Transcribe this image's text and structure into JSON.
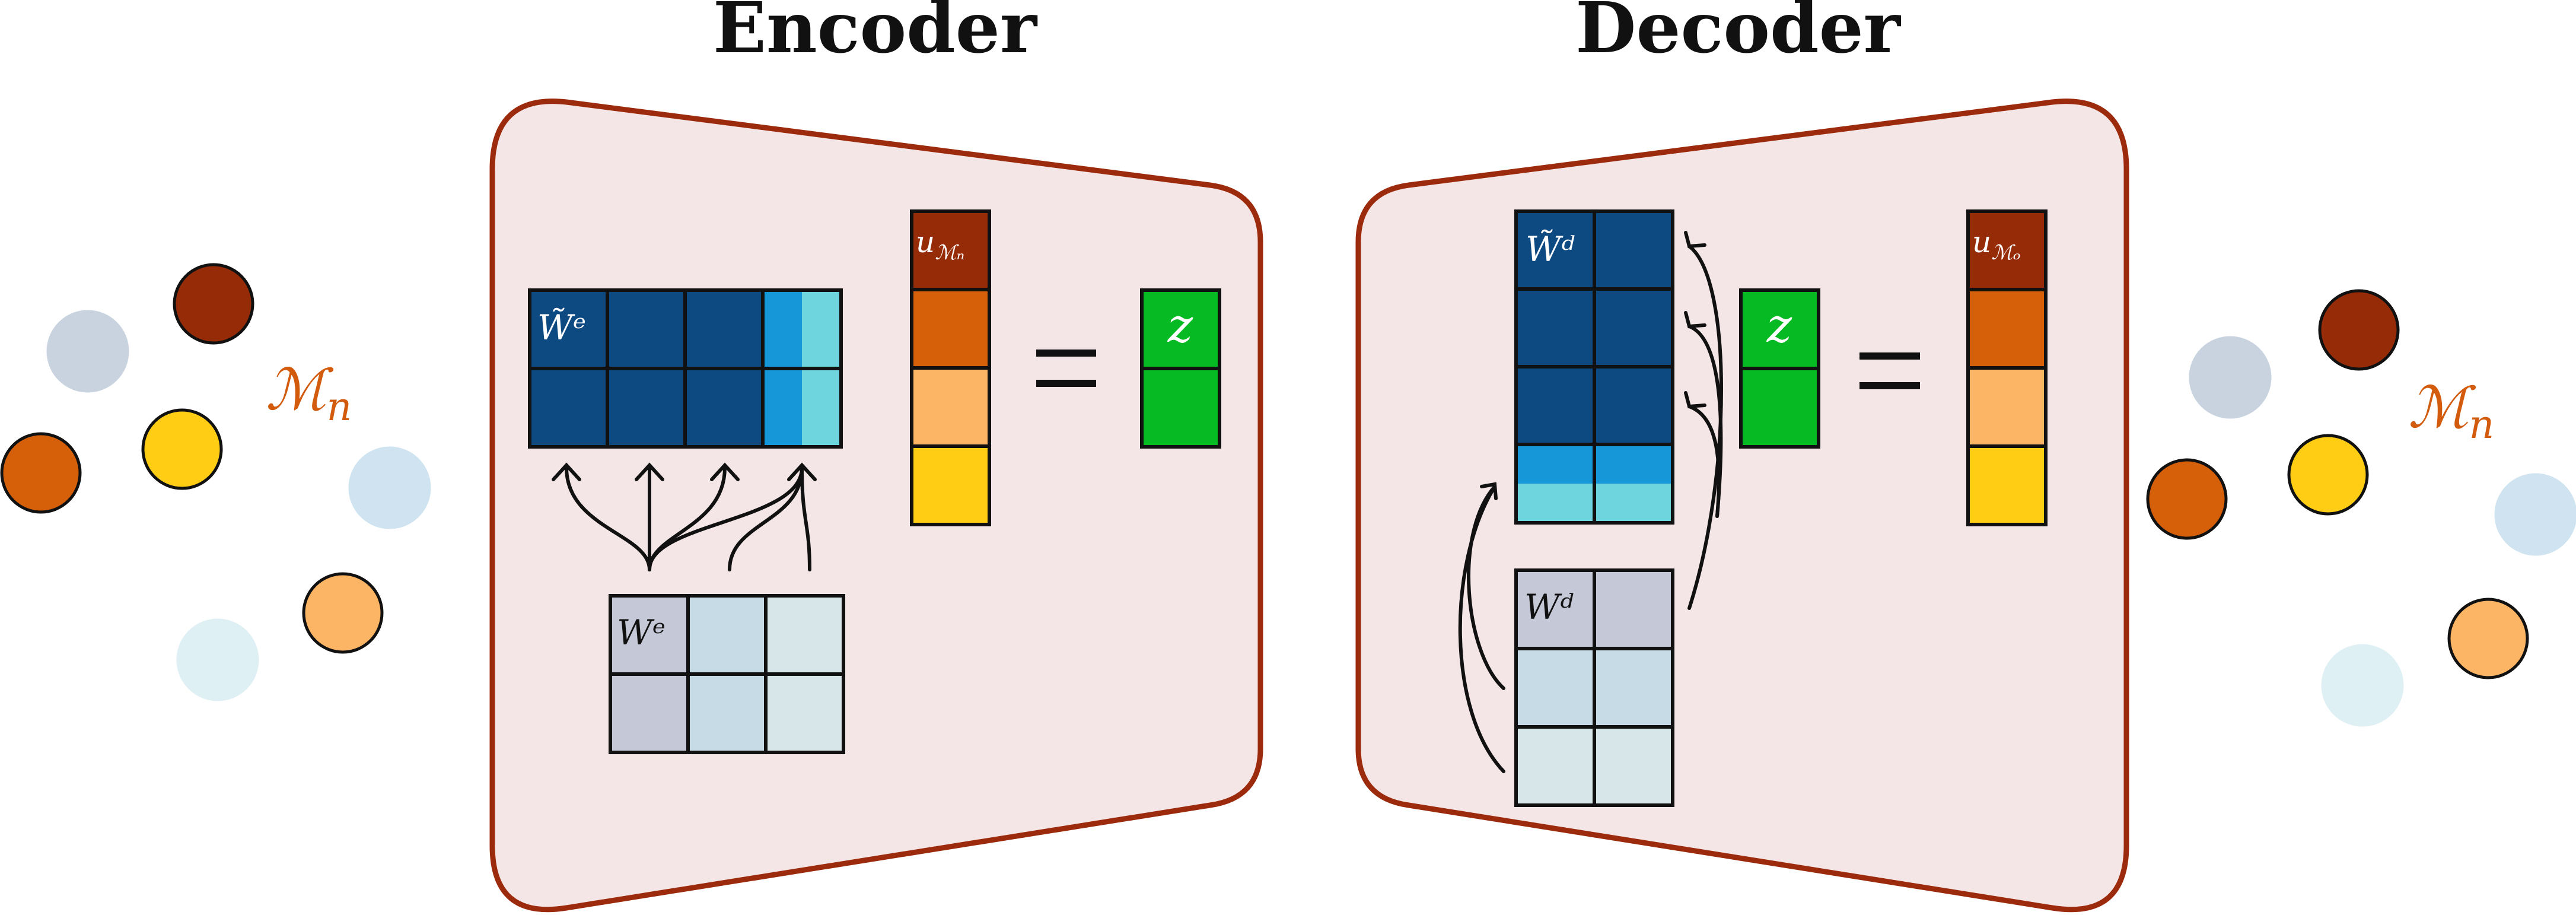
{
  "encoder": {
    "title": "Encoder",
    "w_tilde_label": "W̃ᵉ",
    "w_label": "Wᵉ",
    "u_label": "u",
    "u_sub": "ℳₙ",
    "z_label": "z"
  },
  "decoder": {
    "title": "Decoder",
    "w_tilde_label": "W̃ᵈ",
    "w_label": "Wᵈ",
    "u_label": "u",
    "u_sub": "ℳₒ",
    "z_label": "z"
  },
  "left_manifold": {
    "label": "ℳ",
    "sub": "n"
  },
  "right_manifold": {
    "label": "ℳ",
    "sub": "n"
  },
  "colors": {
    "panel_fill": "#f4e6e6",
    "panel_stroke": "#9c2a0c",
    "dark_blue": "#0e4a82",
    "mid_blue": "#1597d8",
    "light_teal": "#6ed4de",
    "gray_blue": "#c5c8d6",
    "pale_blue": "#c7dbe6",
    "pale_teal": "#d7e6e8",
    "maroon": "#962b08",
    "orange": "#d65f0a",
    "light_orange": "#fcb465",
    "yellow": "#fecd14",
    "green": "#06ba24",
    "manifold_text": "#d25b0d"
  }
}
